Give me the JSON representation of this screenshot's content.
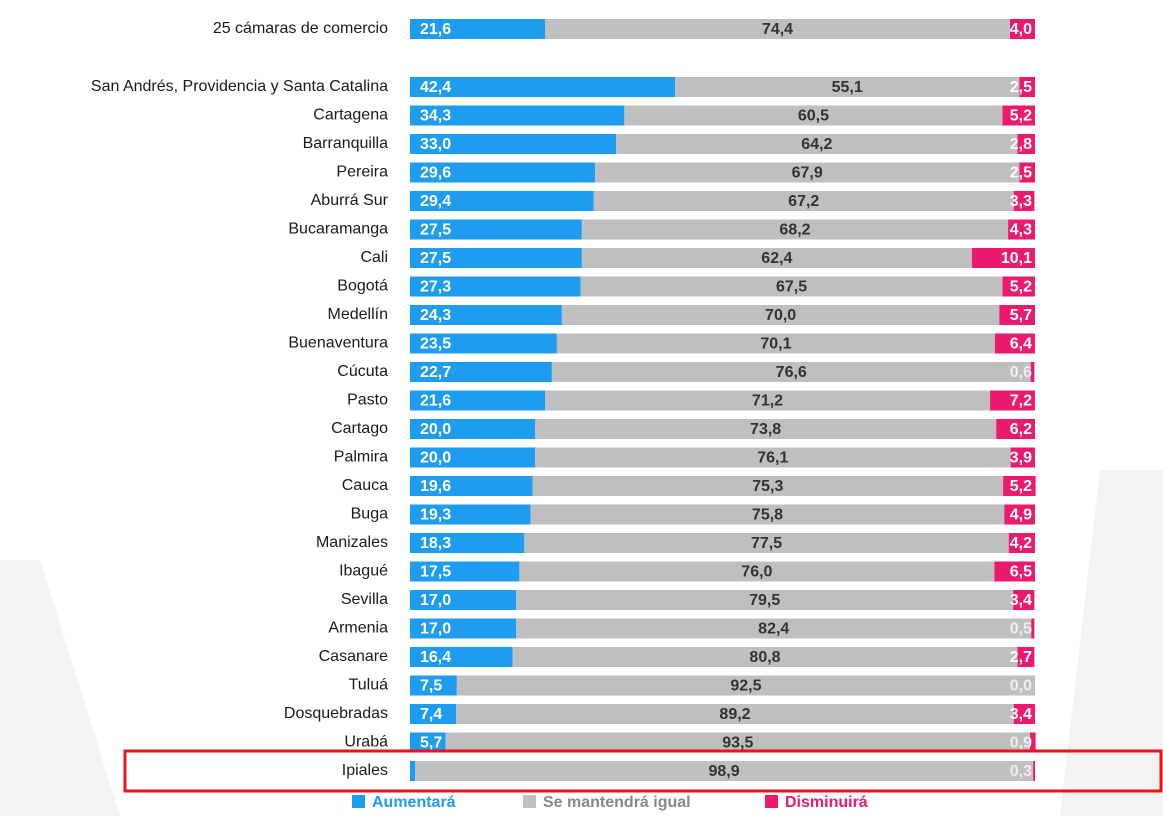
{
  "chart_data": {
    "type": "stacked-bar-horizontal",
    "categories": [
      "25 cámaras de comercio",
      "San Andrés, Providencia y Santa Catalina",
      "Cartagena",
      "Barranquilla",
      "Pereira",
      "Aburrá Sur",
      "Bucaramanga",
      "Cali",
      "Bogotá",
      "Medellín",
      "Buenaventura",
      "Cúcuta",
      "Pasto",
      "Cartago",
      "Palmira",
      "Cauca",
      "Buga",
      "Manizales",
      "Ibagué",
      "Sevilla",
      "Armenia",
      "Casanare",
      "Tuluá",
      "Dosquebradas",
      "Urabá",
      "Ipiales"
    ],
    "xlim": [
      0,
      100
    ],
    "series": [
      {
        "name": "Aumentará",
        "color": "#1e9cf0",
        "values": [
          21.6,
          42.4,
          34.3,
          33.0,
          29.6,
          29.4,
          27.5,
          27.5,
          27.3,
          24.3,
          23.5,
          22.7,
          21.6,
          20.0,
          20.0,
          19.6,
          19.3,
          18.3,
          17.5,
          17.0,
          17.0,
          16.4,
          7.5,
          7.4,
          5.7,
          0.8
        ],
        "value_labels": [
          "21,6",
          "42,4",
          "34,3",
          "33,0",
          "29,6",
          "29,4",
          "27,5",
          "27,5",
          "27,3",
          "24,3",
          "23,5",
          "22,7",
          "21,6",
          "20,0",
          "20,0",
          "19,6",
          "19,3",
          "18,3",
          "17,5",
          "17,0",
          "17,0",
          "16,4",
          "7,5",
          "7,4",
          "5,7",
          "0,8"
        ]
      },
      {
        "name": "Se mantendrá igual",
        "color": "#bfbfbf",
        "values": [
          74.4,
          55.1,
          60.5,
          64.2,
          67.9,
          67.2,
          68.2,
          62.4,
          67.5,
          70.0,
          70.1,
          76.6,
          71.2,
          73.8,
          76.1,
          75.3,
          75.8,
          77.5,
          76.0,
          79.5,
          82.4,
          80.8,
          92.5,
          89.2,
          93.5,
          98.9
        ],
        "value_labels": [
          "74,4",
          "55,1",
          "60,5",
          "64,2",
          "67,9",
          "67,2",
          "68,2",
          "62,4",
          "67,5",
          "70,0",
          "70,1",
          "76,6",
          "71,2",
          "73,8",
          "76,1",
          "75,3",
          "75,8",
          "77,5",
          "76,0",
          "79,5",
          "82,4",
          "80,8",
          "92,5",
          "89,2",
          "93,5",
          "98,9"
        ]
      },
      {
        "name": "Disminuirá",
        "color": "#ec1a6e",
        "values": [
          4.0,
          2.5,
          5.2,
          2.8,
          2.5,
          3.3,
          4.3,
          10.1,
          5.2,
          5.7,
          6.4,
          0.6,
          7.2,
          6.2,
          3.9,
          5.2,
          4.9,
          4.2,
          6.5,
          3.4,
          0.5,
          2.7,
          0.0,
          3.4,
          0.9,
          0.3
        ],
        "value_labels": [
          "4,0",
          "2,5",
          "5,2",
          "2,8",
          "2,5",
          "3,3",
          "4,3",
          "10,1",
          "5,2",
          "5,7",
          "6,4",
          "0,6",
          "7,2",
          "6,2",
          "3,9",
          "5,2",
          "4,9",
          "4,2",
          "6,5",
          "3,4",
          "0,5",
          "2,7",
          "0,0",
          "3,4",
          "0,9",
          "0,3"
        ]
      }
    ]
  }
}
